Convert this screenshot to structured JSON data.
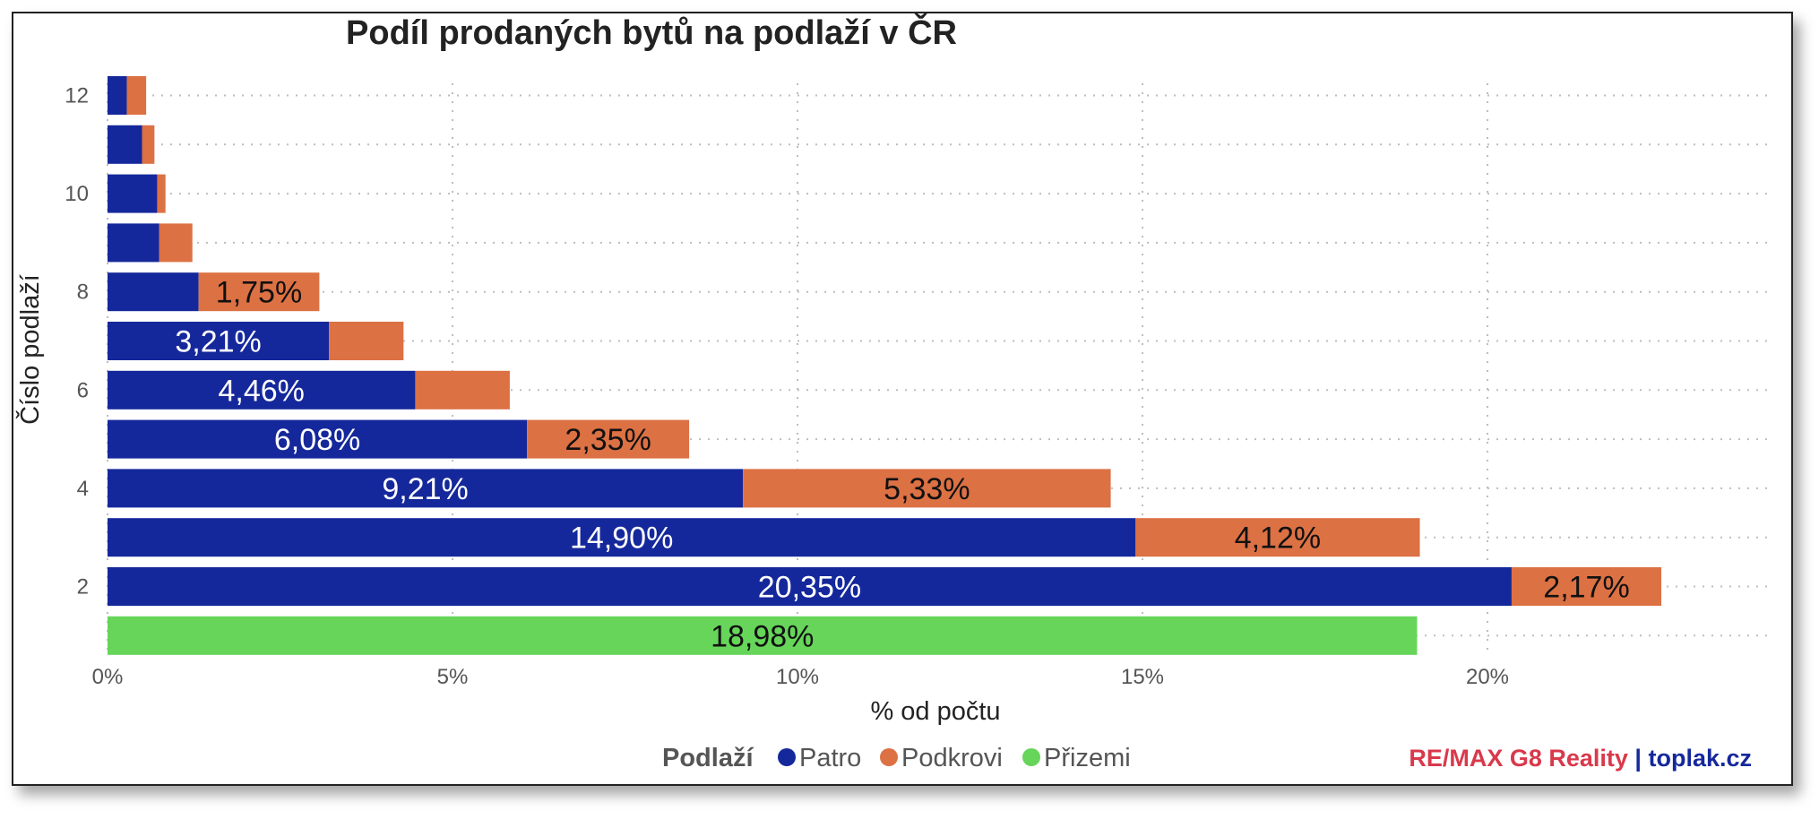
{
  "colors": {
    "patro": "#15289b",
    "podkrovi": "#dc7144",
    "prizemi": "#66d55a",
    "watermark_red": "#d9394b",
    "watermark_blue": "#15289b"
  },
  "watermark": {
    "part1": "RE/MAX G8 Reality",
    "separator": " | ",
    "part2": "toplak.cz"
  },
  "chart_data": {
    "type": "bar",
    "orientation": "horizontal",
    "stacked": true,
    "title": "Podíl prodaných bytů na podlaží v ČR",
    "xlabel": "% od počtu",
    "ylabel": "Číslo podlaží",
    "xlim": [
      0,
      24
    ],
    "x_ticks": [
      "0%",
      "5%",
      "10%",
      "15%",
      "20%"
    ],
    "y_tick_labels": {
      "12": "12",
      "10": "10",
      "8": "8",
      "6": "6",
      "4": "4",
      "2": "2"
    },
    "grid": true,
    "legend": {
      "title": "Podlaží",
      "position": "bottom",
      "entries": [
        "Patro",
        "Podkrovi",
        "Přizemi"
      ]
    },
    "categories": [
      12,
      11,
      10,
      9,
      8,
      7,
      6,
      5,
      4,
      3,
      2,
      1
    ],
    "series": [
      {
        "name": "Patro",
        "values": [
          0.28,
          0.5,
          0.72,
          0.75,
          1.32,
          3.21,
          4.46,
          6.08,
          9.21,
          14.9,
          20.35,
          0
        ],
        "labels": [
          "",
          "",
          "",
          "",
          "",
          "3,21%",
          "4,46%",
          "6,08%",
          "9,21%",
          "14,90%",
          "20,35%",
          ""
        ]
      },
      {
        "name": "Podkrovi",
        "values": [
          0.28,
          0.18,
          0.12,
          0.48,
          1.75,
          1.08,
          1.37,
          2.35,
          5.33,
          4.12,
          2.17,
          0
        ],
        "labels": [
          "",
          "",
          "",
          "",
          "1,75%",
          "",
          "",
          "2,35%",
          "5,33%",
          "4,12%",
          "2,17%",
          ""
        ]
      },
      {
        "name": "Přizemi",
        "values": [
          0,
          0,
          0,
          0,
          0,
          0,
          0,
          0,
          0,
          0,
          0,
          18.98
        ],
        "labels": [
          "",
          "",
          "",
          "",
          "",
          "",
          "",
          "",
          "",
          "",
          "",
          "18,98%"
        ]
      }
    ]
  }
}
